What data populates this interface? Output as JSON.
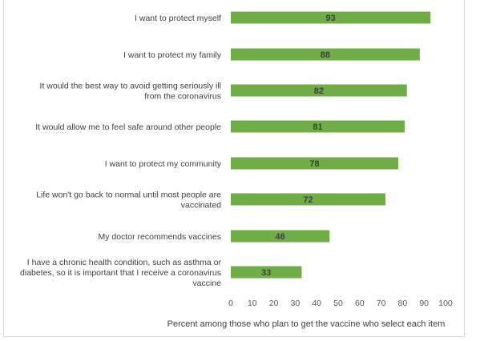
{
  "chart_data": {
    "type": "bar",
    "orientation": "horizontal",
    "categories": [
      [
        "I want to protect myself"
      ],
      [
        "I want to protect my family"
      ],
      [
        "It would the best way to avoid getting seriously ill",
        "from the coronavirus"
      ],
      [
        "It would allow me to feel safe around other people"
      ],
      [
        "I want to protect my community"
      ],
      [
        "Life won't go back to normal until most people are",
        "vaccinated"
      ],
      [
        "My doctor recommends vaccines"
      ],
      [
        "I have a chronic health condition, such as asthma or",
        "diabetes, so it is important that I receive a coronavirus",
        "vaccine"
      ]
    ],
    "values": [
      93,
      88,
      82,
      81,
      78,
      72,
      46,
      33
    ],
    "data_labels": [
      "93",
      "88",
      "82",
      "81",
      "78",
      "72",
      "46",
      "33"
    ],
    "xlabel": "Percent among those who plan to get the vaccine who select each item",
    "xlim": [
      0,
      100
    ],
    "xticks": [
      0,
      10,
      20,
      30,
      40,
      50,
      60,
      70,
      80,
      90,
      100
    ],
    "bar_color": "#70ad47",
    "grid": false,
    "legend": "none"
  }
}
